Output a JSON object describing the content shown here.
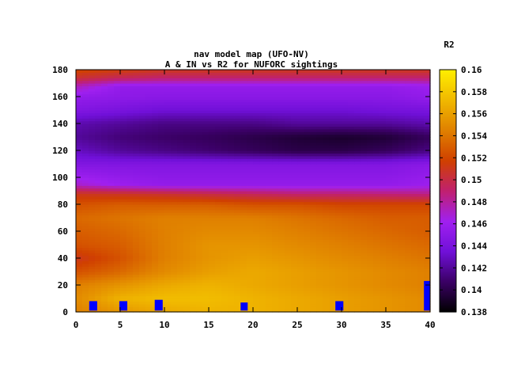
{
  "chart_data": {
    "type": "heatmap",
    "title": "nav model map (UFO-NV)",
    "subtitle": "A & IN vs R2 for NUFORC sightings",
    "colorbar_label": "R2",
    "xlim": [
      0,
      40
    ],
    "ylim": [
      0,
      180
    ],
    "x_ticks": [
      0,
      5,
      10,
      15,
      20,
      25,
      30,
      35,
      40
    ],
    "y_ticks": [
      0,
      20,
      40,
      60,
      80,
      100,
      120,
      140,
      160,
      180
    ],
    "cbar_range": [
      0.138,
      0.16
    ],
    "cbar_ticks": [
      "0.138",
      "0.14",
      "0.142",
      "0.144",
      "0.146",
      "0.148",
      "0.15",
      "0.152",
      "0.154",
      "0.156",
      "0.158",
      "0.16"
    ],
    "palette": [
      "#000000",
      "#3a0064",
      "#7010d8",
      "#a020f0",
      "#c02070",
      "#d04000",
      "#e08000",
      "#f0b800",
      "#ffee00"
    ],
    "rows": [
      {
        "y": 0,
        "values": [
          0.1545,
          0.1555,
          0.1565,
          0.157,
          0.157,
          0.1565,
          0.156,
          0.1555,
          0.155
        ]
      },
      {
        "y": 10,
        "values": [
          0.155,
          0.157,
          0.1575,
          0.1575,
          0.157,
          0.1565,
          0.156,
          0.1555,
          0.155
        ]
      },
      {
        "y": 20,
        "values": [
          0.1545,
          0.1555,
          0.1565,
          0.157,
          0.1565,
          0.156,
          0.1555,
          0.155,
          0.1545
        ]
      },
      {
        "y": 30,
        "values": [
          0.1525,
          0.1535,
          0.155,
          0.156,
          0.1565,
          0.156,
          0.1555,
          0.155,
          0.1545
        ]
      },
      {
        "y": 40,
        "values": [
          0.151,
          0.1525,
          0.1545,
          0.1555,
          0.156,
          0.1555,
          0.155,
          0.1545,
          0.154
        ]
      },
      {
        "y": 50,
        "values": [
          0.1525,
          0.153,
          0.1545,
          0.1555,
          0.1555,
          0.155,
          0.1545,
          0.154,
          0.1535
        ]
      },
      {
        "y": 60,
        "values": [
          0.153,
          0.1535,
          0.1545,
          0.155,
          0.155,
          0.1545,
          0.154,
          0.1535,
          0.153
        ]
      },
      {
        "y": 70,
        "values": [
          0.1535,
          0.154,
          0.1545,
          0.1545,
          0.1545,
          0.154,
          0.1535,
          0.153,
          0.153
        ]
      },
      {
        "y": 80,
        "values": [
          0.1525,
          0.153,
          0.153,
          0.153,
          0.1525,
          0.1525,
          0.152,
          0.152,
          0.152
        ]
      },
      {
        "y": 88,
        "values": [
          0.151,
          0.1508,
          0.1505,
          0.15,
          0.1495,
          0.149,
          0.149,
          0.1488,
          0.1485
        ]
      },
      {
        "y": 95,
        "values": [
          0.147,
          0.146,
          0.1455,
          0.1455,
          0.1455,
          0.1455,
          0.1455,
          0.1455,
          0.146
        ]
      },
      {
        "y": 110,
        "values": [
          0.1445,
          0.1445,
          0.1445,
          0.1445,
          0.1445,
          0.1445,
          0.1445,
          0.1445,
          0.145
        ]
      },
      {
        "y": 120,
        "values": [
          0.143,
          0.142,
          0.1415,
          0.141,
          0.1405,
          0.14,
          0.14,
          0.1405,
          0.1415
        ]
      },
      {
        "y": 130,
        "values": [
          0.142,
          0.1412,
          0.1408,
          0.1405,
          0.14,
          0.1395,
          0.1392,
          0.1395,
          0.1405
        ]
      },
      {
        "y": 140,
        "values": [
          0.1425,
          0.142,
          0.1415,
          0.1415,
          0.1415,
          0.142,
          0.142,
          0.142,
          0.1425
        ]
      },
      {
        "y": 150,
        "values": [
          0.1445,
          0.144,
          0.1435,
          0.1435,
          0.1435,
          0.1435,
          0.1435,
          0.1438,
          0.144
        ]
      },
      {
        "y": 160,
        "values": [
          0.1455,
          0.1452,
          0.145,
          0.145,
          0.145,
          0.145,
          0.145,
          0.145,
          0.1455
        ]
      },
      {
        "y": 168,
        "values": [
          0.1475,
          0.1455,
          0.1455,
          0.1455,
          0.1455,
          0.1455,
          0.1455,
          0.1455,
          0.146
        ]
      },
      {
        "y": 174,
        "values": [
          0.1505,
          0.1495,
          0.149,
          0.149,
          0.149,
          0.149,
          0.149,
          0.149,
          0.149
        ]
      },
      {
        "y": 180,
        "values": [
          0.152,
          0.1515,
          0.151,
          0.151,
          0.151,
          0.151,
          0.151,
          0.151,
          0.151
        ]
      }
    ],
    "row_x": [
      0,
      5,
      10,
      15,
      20,
      25,
      30,
      35,
      40
    ],
    "markers": {
      "color": "#0000ff",
      "points": [
        {
          "x": 1.5,
          "x2": 2.4,
          "y": 1,
          "y2": 8
        },
        {
          "x": 4.9,
          "x2": 5.8,
          "y": 1,
          "y2": 8
        },
        {
          "x": 8.9,
          "x2": 9.8,
          "y": 1,
          "y2": 9
        },
        {
          "x": 18.6,
          "x2": 19.4,
          "y": 1,
          "y2": 7
        },
        {
          "x": 29.3,
          "x2": 30.2,
          "y": 1,
          "y2": 8
        },
        {
          "x": 39.3,
          "x2": 40.2,
          "y": 1,
          "y2": 23
        }
      ]
    }
  }
}
